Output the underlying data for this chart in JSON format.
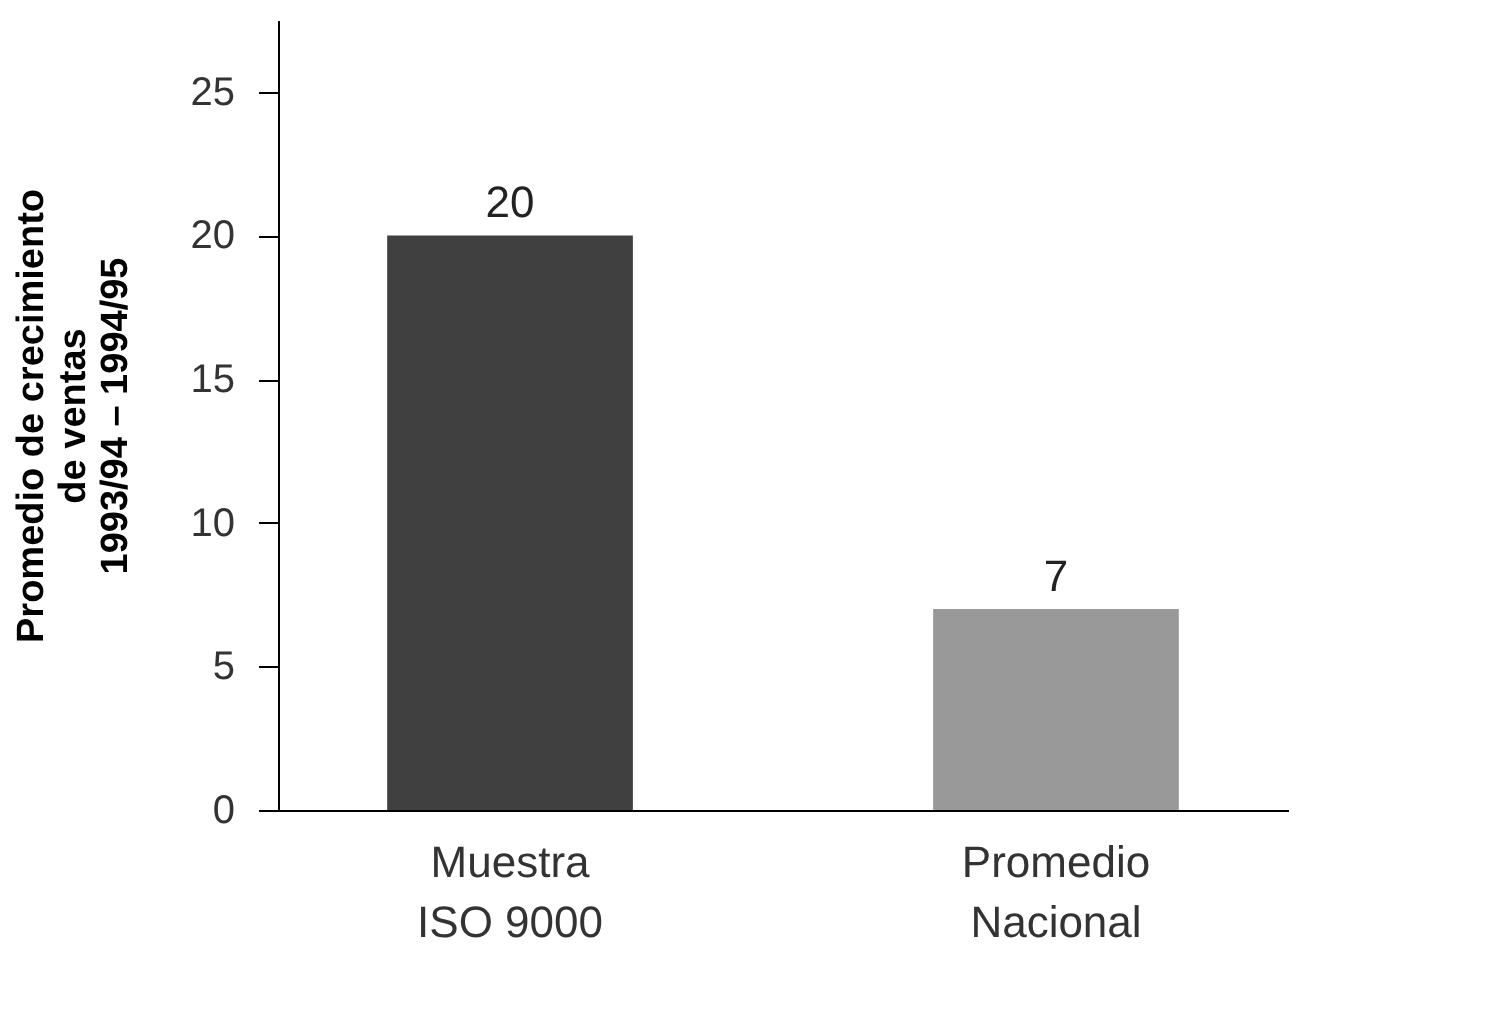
{
  "chart_data": {
    "type": "bar",
    "categories": [
      "Muestra\nISO 9000",
      "Promedio\nNacional"
    ],
    "values": [
      20,
      7
    ],
    "colors": [
      "#404040",
      "#999999"
    ],
    "ylabel": "Promedio de crecimiento\nde ventas\n1993/94 – 1994/95",
    "ylim": [
      0,
      27.5
    ],
    "yticks": [
      0,
      5,
      10,
      15,
      20,
      25
    ],
    "data_labels": true,
    "grid": false,
    "legend": false
  }
}
